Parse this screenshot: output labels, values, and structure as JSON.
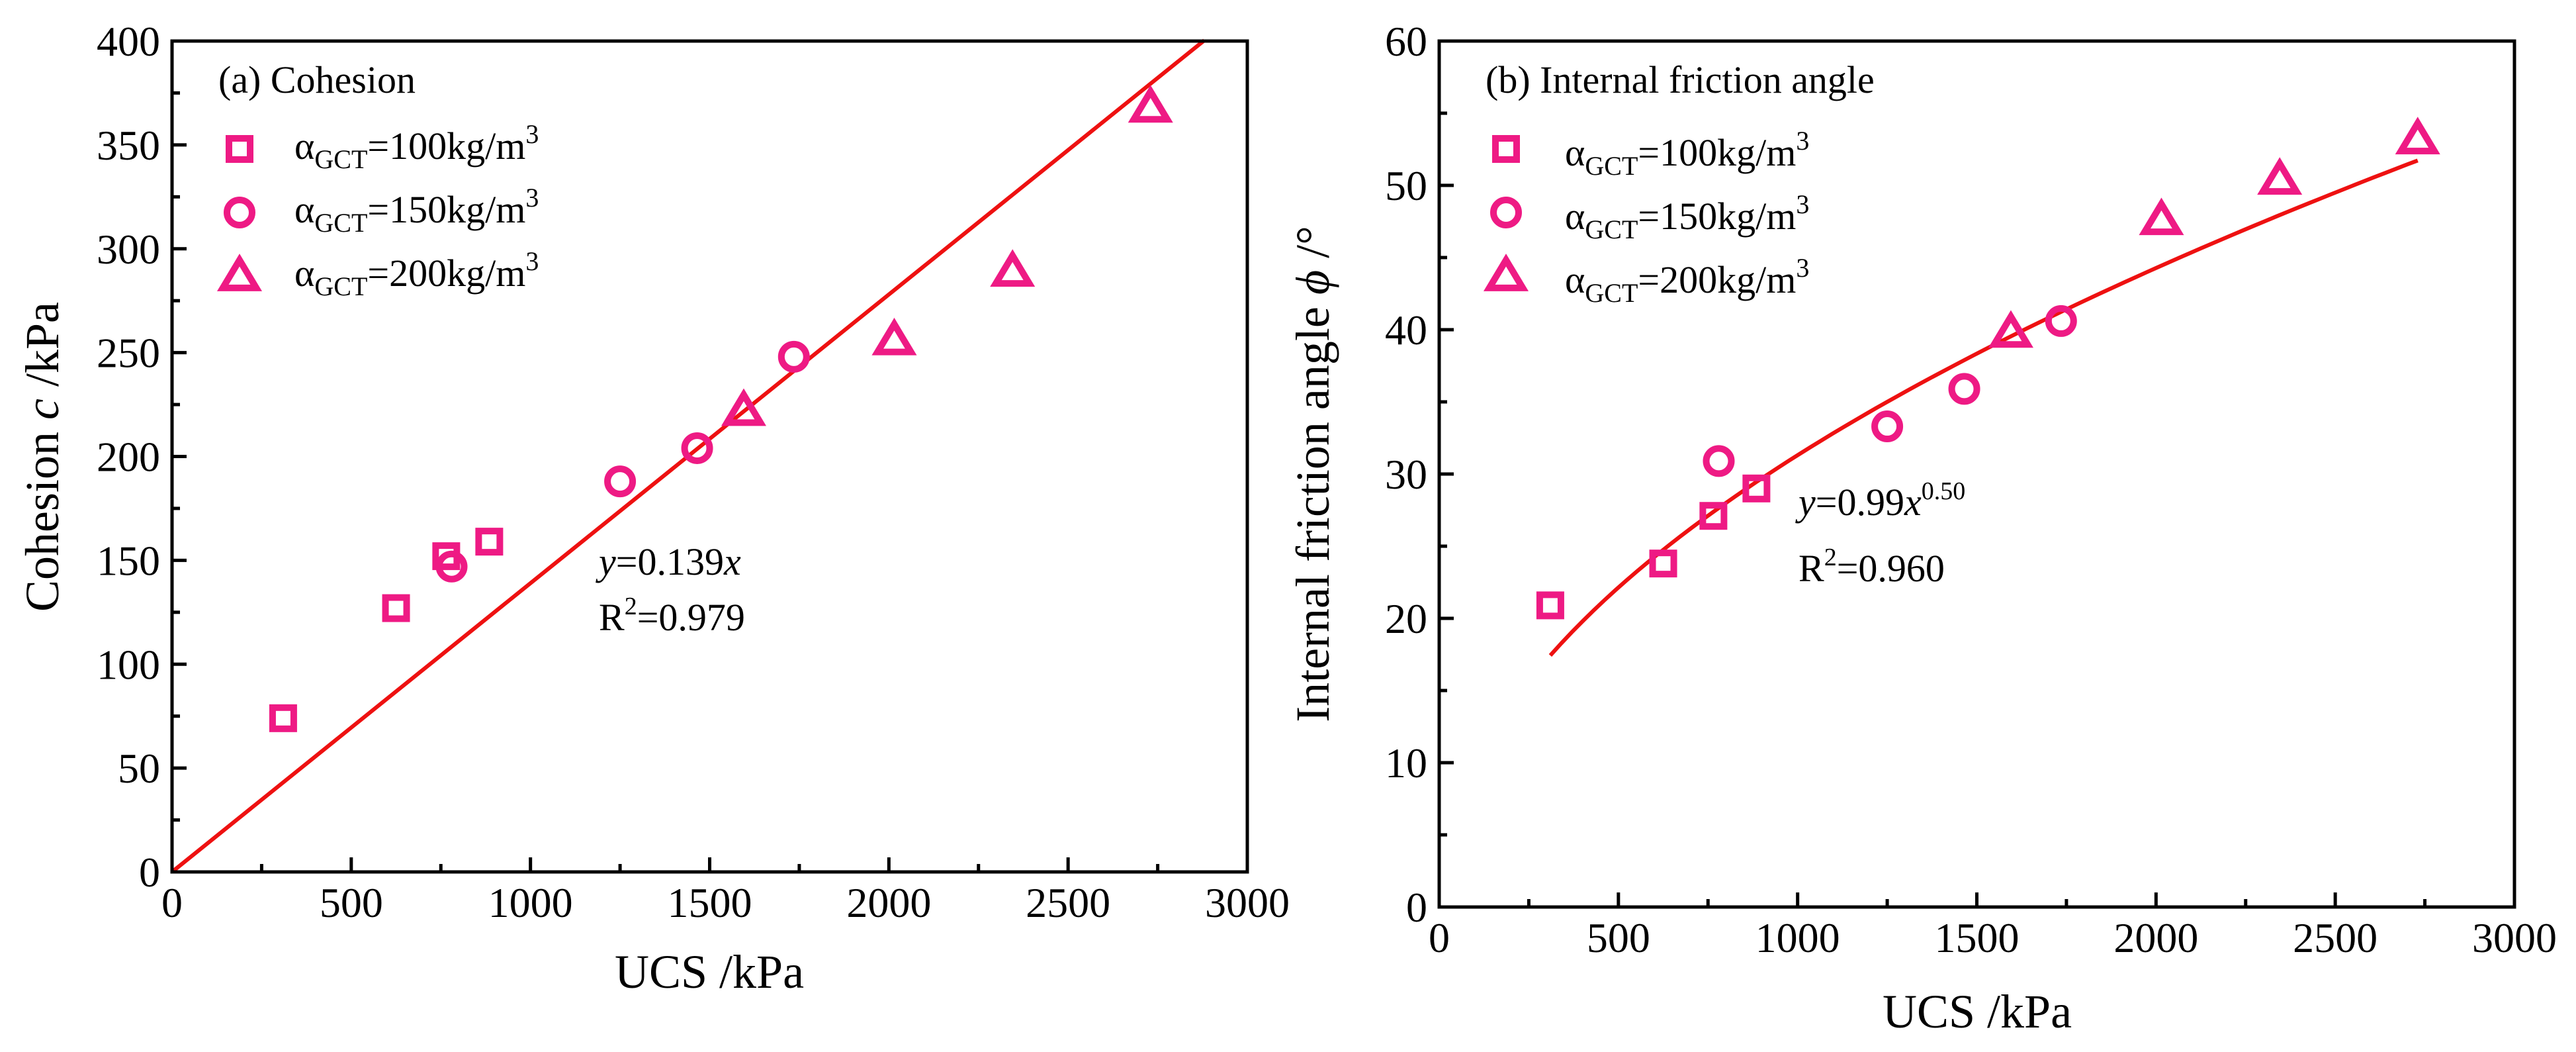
{
  "colors": {
    "marker": "#ee1a84",
    "fit": "#ee1111",
    "axis": "#000000"
  },
  "legend": {
    "entries": [
      {
        "marker": "square",
        "prefix": "α",
        "sub": "GCT",
        "value": "=100kg/m",
        "sup": "3"
      },
      {
        "marker": "circle",
        "prefix": "α",
        "sub": "GCT",
        "value": "=150kg/m",
        "sup": "3"
      },
      {
        "marker": "triangle",
        "prefix": "α",
        "sub": "GCT",
        "value": "=200kg/m",
        "sup": "3"
      }
    ]
  },
  "chart_data": [
    {
      "type": "scatter",
      "title": "(a) Cohesion",
      "xlabel": "UCS /kPa",
      "ylabel": {
        "prefix": "Cohesion ",
        "symbol": "c",
        "suffix": " /kPa"
      },
      "xlim": [
        0,
        3000
      ],
      "ylim": [
        0,
        400
      ],
      "xticks": [
        0,
        500,
        1000,
        1500,
        2000,
        2500,
        3000
      ],
      "yticks": [
        0,
        50,
        100,
        150,
        200,
        250,
        300,
        350,
        400
      ],
      "series": [
        {
          "name": "αGCT=100kg/m3",
          "marker": "square",
          "x": [
            310,
            625,
            765,
            885
          ],
          "y": [
            74,
            127,
            152,
            159
          ]
        },
        {
          "name": "αGCT=150kg/m3",
          "marker": "circle",
          "x": [
            780,
            1250,
            1465,
            1735
          ],
          "y": [
            147,
            188,
            204,
            248
          ]
        },
        {
          "name": "αGCT=200kg/m3",
          "marker": "triangle",
          "x": [
            1595,
            2015,
            2345,
            2730
          ],
          "y": [
            222,
            256,
            289,
            368
          ]
        }
      ],
      "fit": {
        "type": "linear",
        "slope": 0.139,
        "x_range": [
          0,
          2880
        ]
      },
      "annotation": {
        "eq_var": "y",
        "eq_rest": "=0.139",
        "eq_x": "x",
        "r2_prefix": "R",
        "r2_sup": "2",
        "r2_rest": "=0.979"
      }
    },
    {
      "type": "scatter",
      "title": "(b) Internal friction angle",
      "xlabel": "UCS /kPa",
      "ylabel": {
        "prefix": "Internal friction angle  ",
        "symbol": "ϕ",
        "suffix": " /°"
      },
      "xlim": [
        0,
        3000
      ],
      "ylim": [
        0,
        60
      ],
      "xticks": [
        0,
        500,
        1000,
        1500,
        2000,
        2500,
        3000
      ],
      "yticks": [
        0,
        10,
        20,
        30,
        40,
        50,
        60
      ],
      "series": [
        {
          "name": "αGCT=100kg/m3",
          "marker": "square",
          "x": [
            310,
            625,
            765,
            885
          ],
          "y": [
            20.9,
            23.8,
            27.1,
            29.0
          ]
        },
        {
          "name": "αGCT=150kg/m3",
          "marker": "circle",
          "x": [
            780,
            1250,
            1465,
            1735
          ],
          "y": [
            30.9,
            33.3,
            35.9,
            40.6
          ]
        },
        {
          "name": "αGCT=200kg/m3",
          "marker": "triangle",
          "x": [
            1595,
            2015,
            2345,
            2730
          ],
          "y": [
            39.8,
            47.6,
            50.4,
            53.2
          ]
        }
      ],
      "fit": {
        "type": "power",
        "a": 0.99,
        "b": 0.5,
        "x_range": [
          310,
          2730
        ]
      },
      "annotation": {
        "eq_var": "y",
        "eq_rest": "=0.99",
        "eq_x": "x",
        "eq_sup": "0.50",
        "r2_prefix": "R",
        "r2_sup": "2",
        "r2_rest": "=0.960"
      }
    }
  ]
}
